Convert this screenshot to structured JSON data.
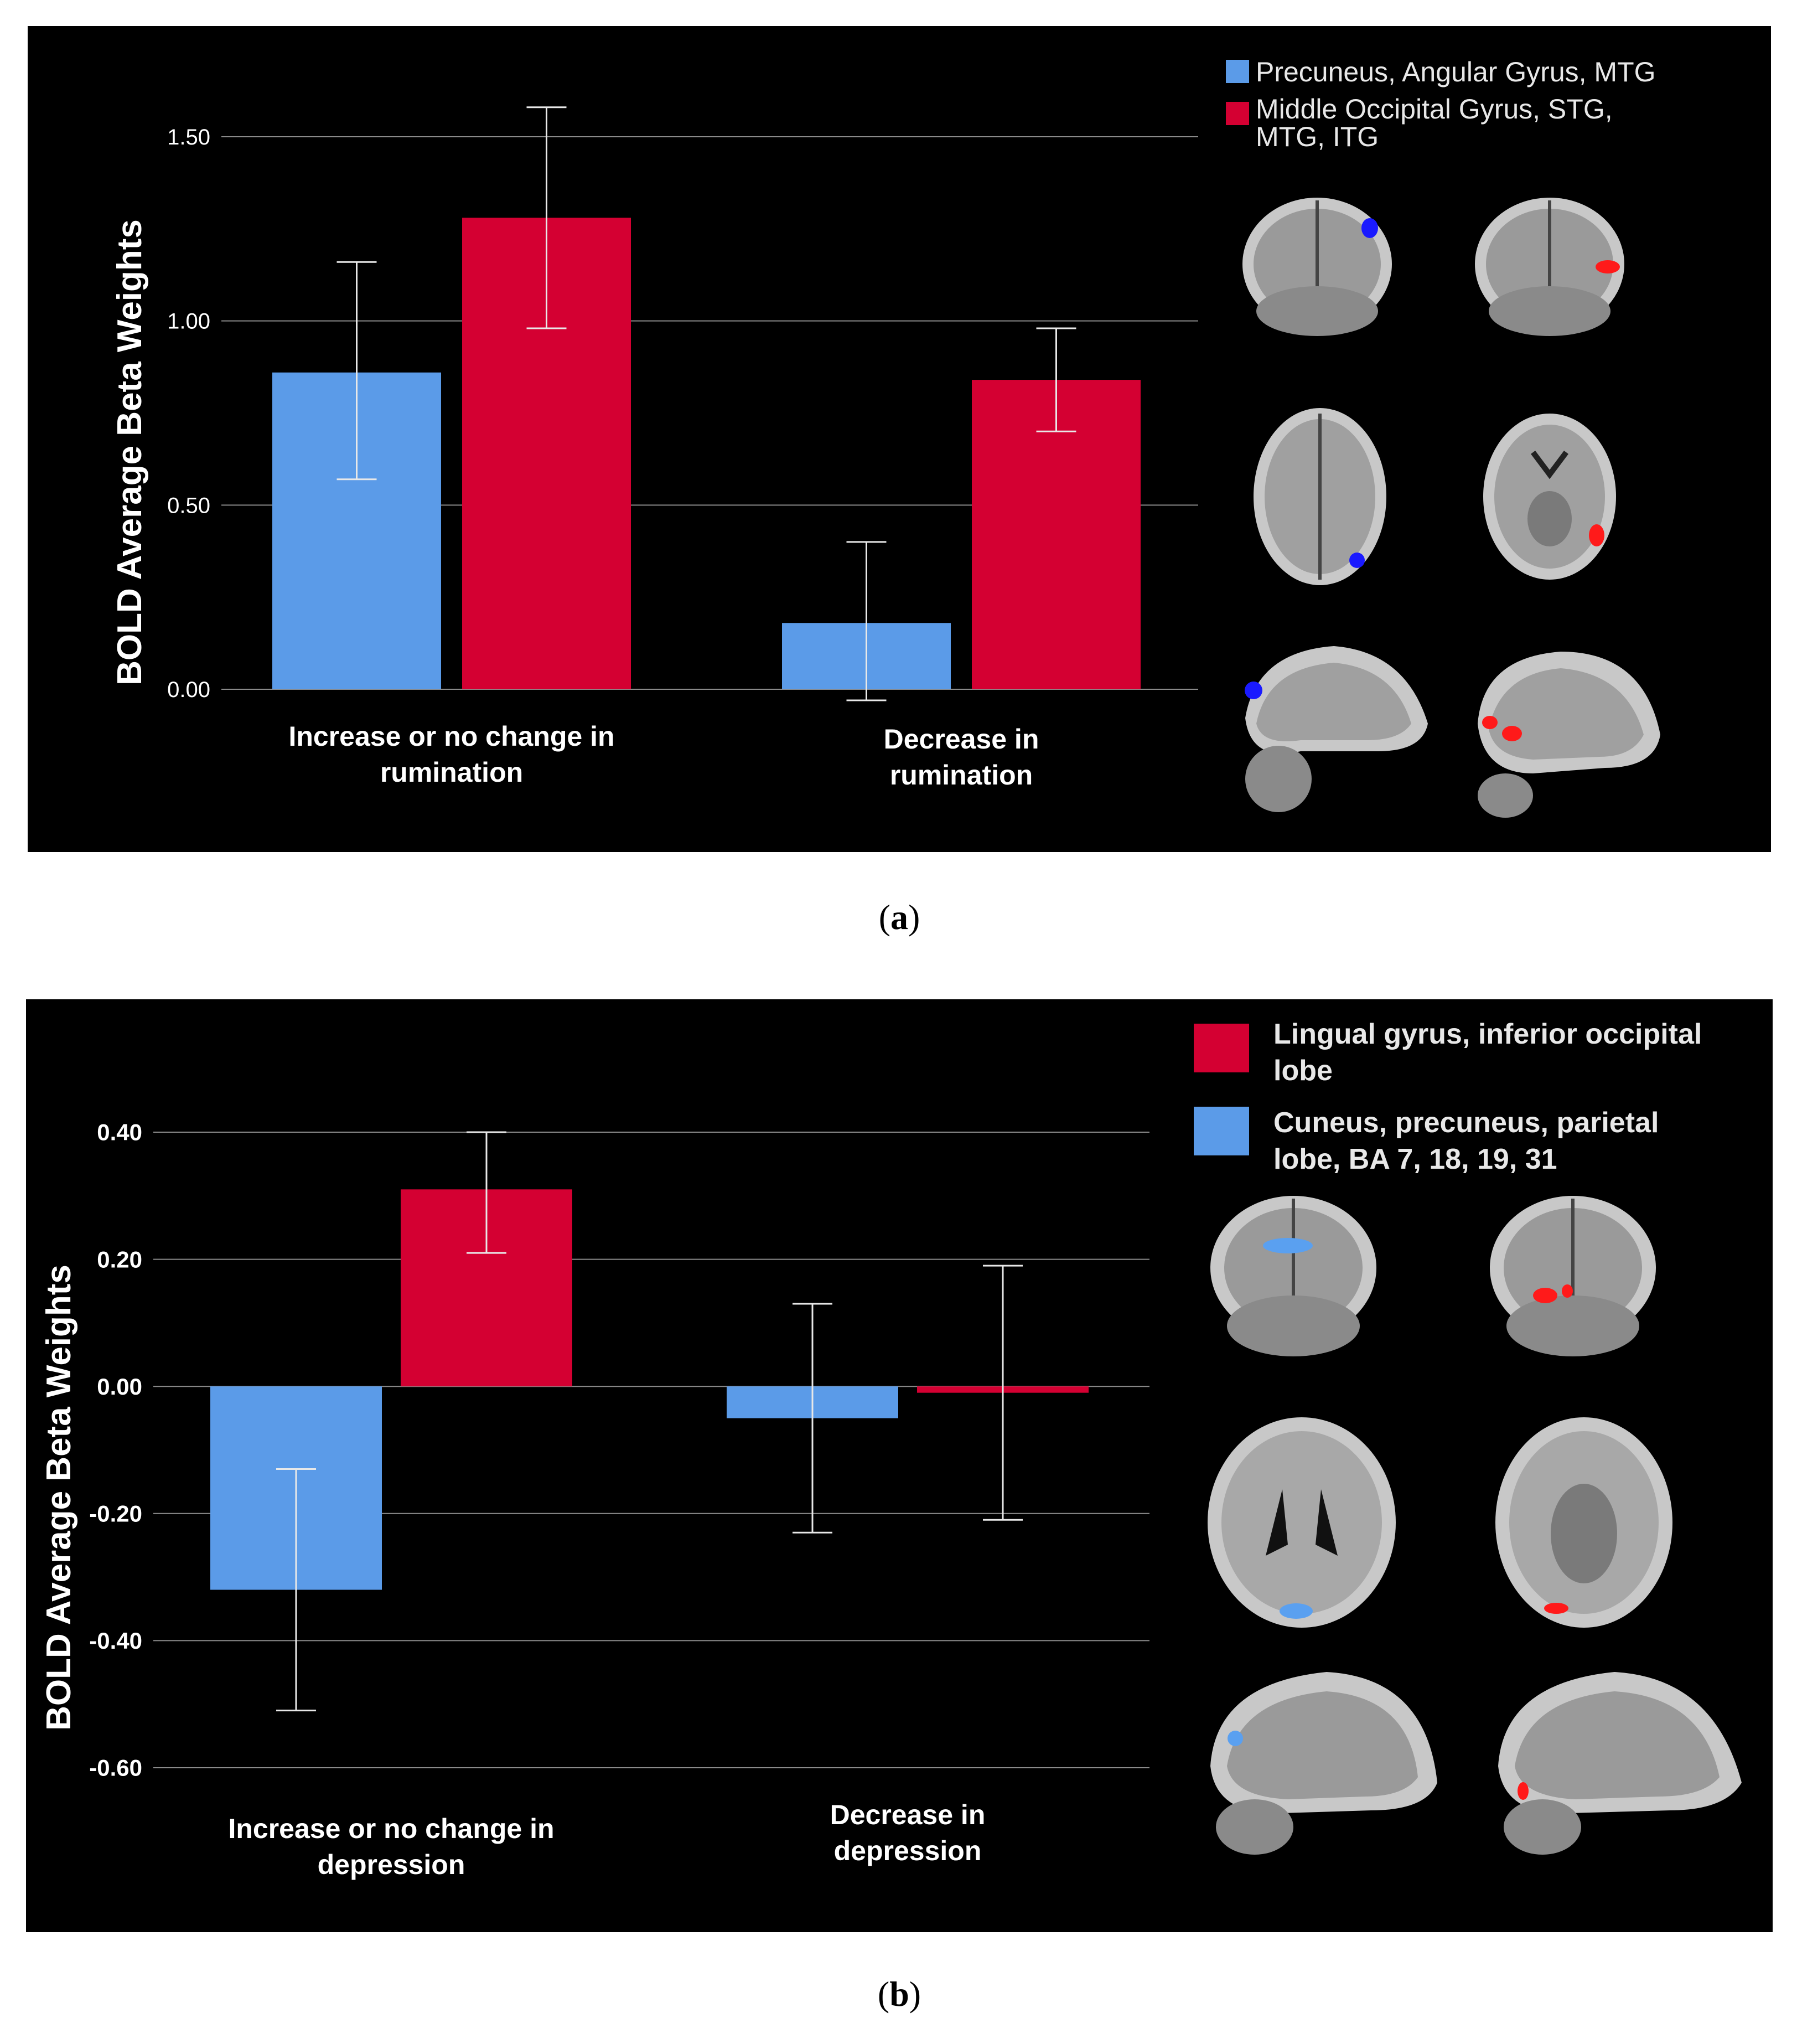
{
  "colors": {
    "blue": "#5b9be8",
    "red": "#d40032",
    "background": "#000000",
    "grid": "#8a8a8a",
    "text": "#ffffff",
    "blob_blue_a": "#1a1aff",
    "blob_red": "#ff1a1a",
    "blob_blue_b": "#5aa0f0"
  },
  "panels": [
    {
      "id": "a",
      "caption_letter": "a",
      "legend": [
        {
          "label": "Precuneus, Angular Gyrus, MTG",
          "color": "#5b9be8"
        },
        {
          "label": "Middle Occipital Gyrus, STG,\nMTG, ITG",
          "color": "#d40032"
        }
      ],
      "brain_views": [
        "coronal-blue",
        "coronal-red",
        "axial-blue",
        "axial-red",
        "sagittal-blue",
        "sagittal-red"
      ]
    },
    {
      "id": "b",
      "caption_letter": "b",
      "legend": [
        {
          "label": "Lingual gyrus, inferior occipital\nlobe",
          "color": "#d40032"
        },
        {
          "label": "Cuneus, precuneus, parietal\nlobe, BA 7, 18, 19, 31",
          "color": "#5b9be8"
        }
      ],
      "brain_views": [
        "coronal-blue",
        "coronal-red",
        "axial-blue",
        "axial-red",
        "sagittal-blue",
        "sagittal-red"
      ]
    }
  ],
  "chart_data": [
    {
      "type": "bar",
      "title": "",
      "xlabel": "",
      "ylabel": "BOLD Average Beta Weights",
      "ylim": [
        0,
        1.6
      ],
      "yticks": [
        0,
        0.5,
        1.0,
        1.5
      ],
      "ytick_labels": [
        "0.00",
        "0.50",
        "1.00",
        "1.50"
      ],
      "grid": true,
      "categories": [
        "Increase or no change in\nrumination",
        "Decrease in\nrumination"
      ],
      "series": [
        {
          "name": "Precuneus, Angular Gyrus, MTG",
          "color": "#5b9be8",
          "values": [
            0.86,
            0.18
          ],
          "err_low": [
            0.57,
            -0.03
          ],
          "err_high": [
            1.16,
            0.4
          ]
        },
        {
          "name": "Middle Occipital Gyrus, STG, MTG, ITG",
          "color": "#d40032",
          "values": [
            1.28,
            0.84
          ],
          "err_low": [
            0.98,
            0.7
          ],
          "err_high": [
            1.58,
            0.98
          ]
        }
      ]
    },
    {
      "type": "bar",
      "title": "",
      "xlabel": "",
      "ylabel": "BOLD Average Beta Weights",
      "ylim": [
        -0.6,
        0.4
      ],
      "yticks": [
        -0.6,
        -0.4,
        -0.2,
        0,
        0.2,
        0.4
      ],
      "ytick_labels": [
        "-0.60",
        "-0.40",
        "-0.20",
        "0.00",
        "0.20",
        "0.40"
      ],
      "grid": true,
      "categories": [
        "Increase or no change in\ndepression",
        "Decrease in\ndepression"
      ],
      "series": [
        {
          "name": "Cuneus, precuneus, parietal lobe, BA 7, 18, 19, 31",
          "color": "#5b9be8",
          "values": [
            -0.32,
            -0.05
          ],
          "err_low": [
            -0.51,
            -0.23
          ],
          "err_high": [
            -0.13,
            0.13
          ]
        },
        {
          "name": "Lingual gyrus, inferior occipital lobe",
          "color": "#d40032",
          "values": [
            0.31,
            -0.01
          ],
          "err_low": [
            0.21,
            -0.21
          ],
          "err_high": [
            0.4,
            0.19
          ]
        }
      ]
    }
  ]
}
